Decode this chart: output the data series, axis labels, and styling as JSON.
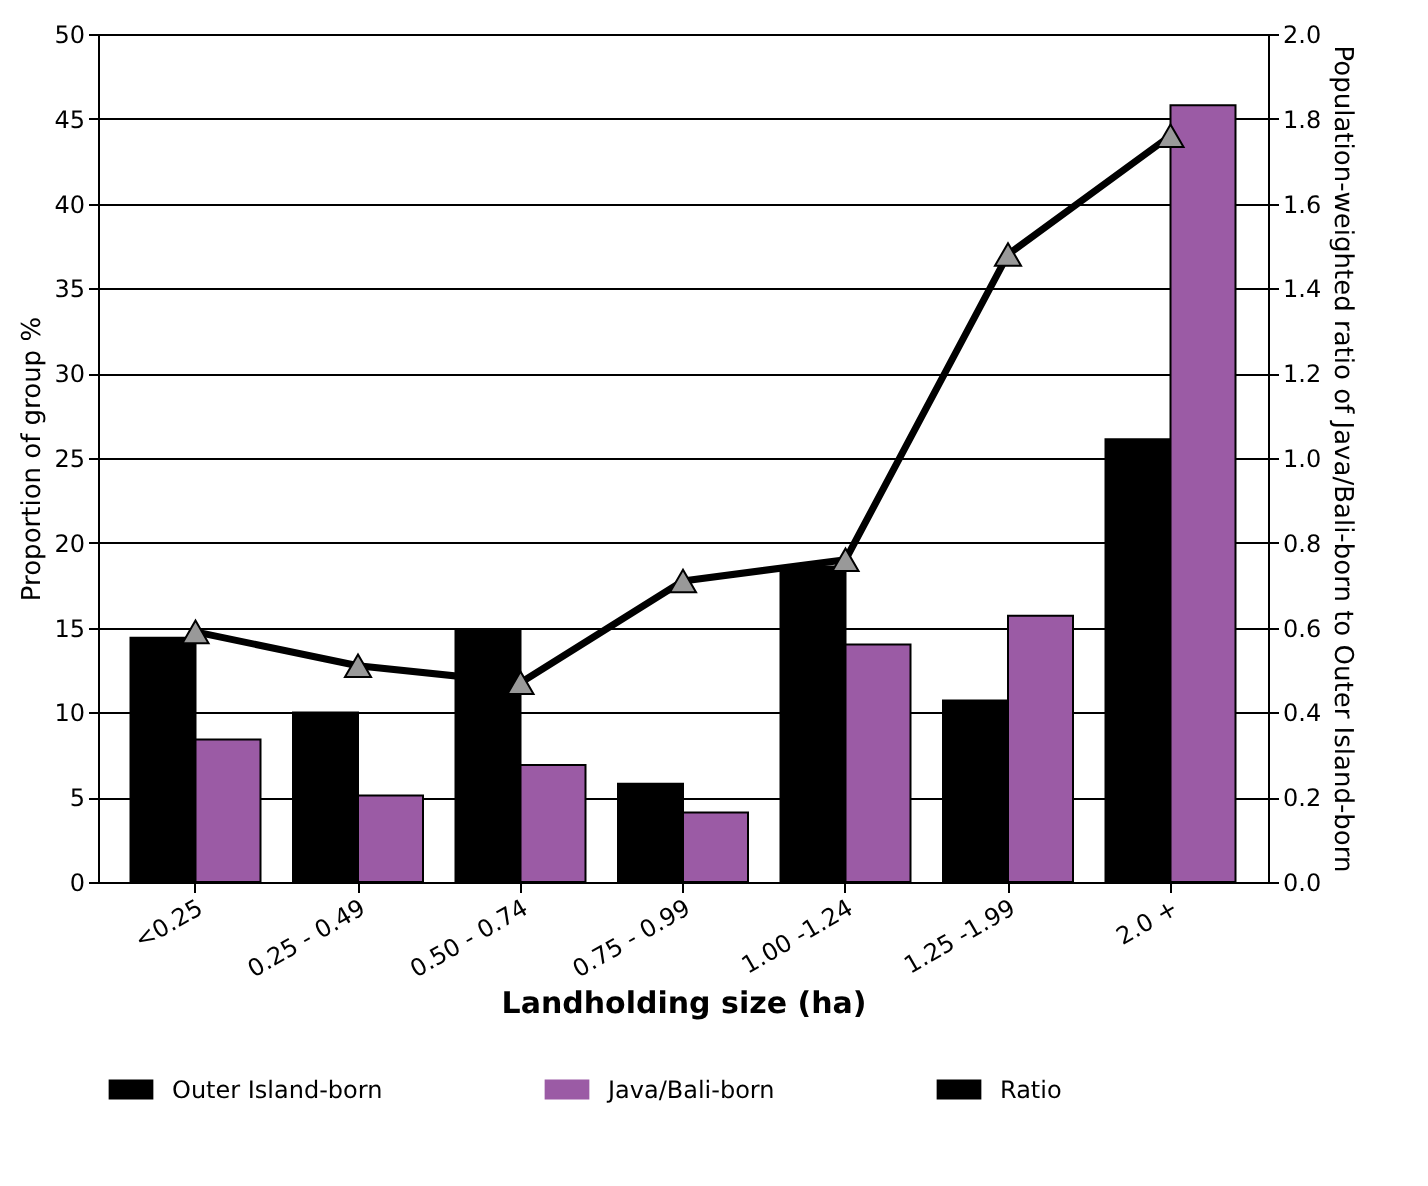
{
  "chart_data": {
    "type": "bar",
    "xlabel": "Landholding size (ha)",
    "ylabel": "Proportion of group %",
    "y2label": "Population-weighted ratio of Java/Bali-born to Outer Island-born",
    "categories": [
      "<0.25",
      "0.25 - 0.49",
      "0.50 - 0.74",
      "0.75 - 0.99",
      "1.00 -1.24",
      "1.25 -1.99",
      "2.0 +"
    ],
    "series": [
      {
        "name": "Outer Island-born",
        "color": "#000000",
        "values": [
          14.4,
          10.0,
          14.8,
          5.8,
          18.6,
          10.7,
          26.1
        ]
      },
      {
        "name": "Java/Bali-born",
        "color": "#9b5ba5",
        "values": [
          8.4,
          5.1,
          6.9,
          4.1,
          14.0,
          15.7,
          45.8
        ]
      },
      {
        "name": "Ratio",
        "type": "line",
        "axis": "y2",
        "color": "#000000",
        "marker": "triangle",
        "values": [
          0.59,
          0.51,
          0.47,
          0.71,
          0.76,
          1.48,
          1.76
        ]
      }
    ],
    "ylim": [
      0,
      50
    ],
    "yticks": [
      0,
      5,
      10,
      15,
      20,
      25,
      30,
      35,
      40,
      45,
      50
    ],
    "y2lim": [
      0,
      2
    ],
    "y2ticks": [
      {
        "value": 0,
        "label": "0.0"
      },
      {
        "value": 0.2,
        "label": "0.2"
      },
      {
        "value": 0.4,
        "label": "0.4"
      },
      {
        "value": 0.6,
        "label": "0.6"
      },
      {
        "value": 0.8,
        "label": "0.8"
      },
      {
        "value": 1,
        "label": "1.0"
      },
      {
        "value": 1.2,
        "label": "1.2"
      },
      {
        "value": 1.4,
        "label": "1.4"
      },
      {
        "value": 1.6,
        "label": "1.6"
      },
      {
        "value": 1.8,
        "label": "1.8"
      },
      {
        "value": 2,
        "label": "2.0"
      }
    ],
    "grid": "y",
    "legend": "bottom",
    "line_style": "solid"
  }
}
